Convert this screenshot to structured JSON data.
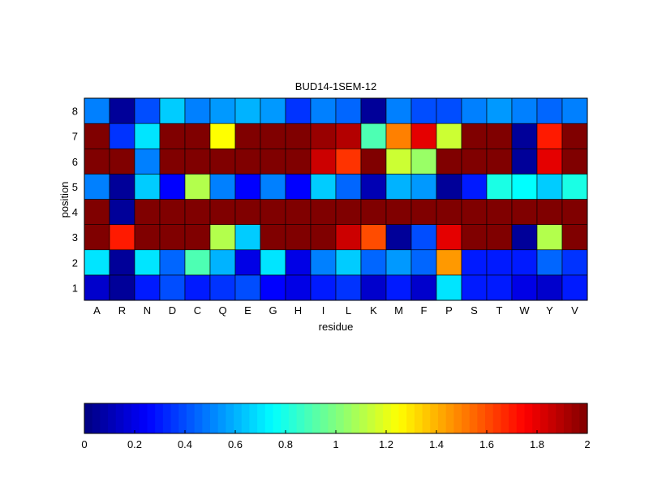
{
  "chart_data": {
    "type": "heatmap",
    "title": "BUD14-1SEM-12",
    "xlabel": "residue",
    "ylabel": "position",
    "x_categories": [
      "A",
      "R",
      "N",
      "D",
      "C",
      "Q",
      "E",
      "G",
      "H",
      "I",
      "L",
      "K",
      "M",
      "F",
      "P",
      "S",
      "T",
      "W",
      "Y",
      "V"
    ],
    "y_categories": [
      "1",
      "2",
      "3",
      "4",
      "5",
      "6",
      "7",
      "8"
    ],
    "values": [
      [
        0.15,
        0.05,
        0.3,
        0.4,
        0.3,
        0.35,
        0.4,
        0.25,
        0.2,
        0.3,
        0.35,
        0.15,
        0.3,
        0.15,
        0.7,
        0.3,
        0.3,
        0.2,
        0.15,
        0.3
      ],
      [
        0.7,
        0.05,
        0.7,
        0.45,
        0.9,
        0.6,
        0.2,
        0.7,
        0.2,
        0.5,
        0.65,
        0.45,
        0.55,
        0.45,
        1.45,
        0.3,
        0.3,
        0.3,
        0.45,
        0.35
      ],
      [
        2.0,
        1.7,
        2.0,
        2.0,
        2.0,
        1.1,
        0.65,
        2.0,
        2.0,
        2.0,
        1.85,
        1.6,
        0.05,
        0.4,
        1.8,
        2.0,
        2.0,
        0.05,
        1.1,
        2.0
      ],
      [
        2.0,
        0.05,
        2.0,
        2.0,
        2.0,
        2.0,
        2.0,
        2.0,
        2.0,
        2.0,
        2.0,
        2.0,
        2.0,
        2.0,
        2.0,
        2.0,
        2.0,
        2.0,
        2.0,
        2.0
      ],
      [
        0.5,
        0.05,
        0.65,
        0.25,
        1.1,
        0.5,
        0.25,
        0.5,
        0.25,
        0.65,
        0.45,
        0.1,
        0.6,
        0.55,
        0.05,
        0.3,
        0.8,
        0.75,
        0.65,
        0.8
      ],
      [
        2.0,
        2.0,
        0.5,
        2.0,
        2.0,
        2.0,
        2.0,
        2.0,
        2.0,
        1.85,
        1.65,
        2.0,
        1.15,
        1.05,
        2.0,
        2.0,
        2.0,
        0.05,
        1.8,
        2.0
      ],
      [
        2.0,
        0.35,
        0.7,
        2.0,
        2.0,
        1.25,
        2.0,
        2.0,
        2.0,
        1.95,
        1.9,
        0.9,
        1.5,
        1.8,
        1.15,
        2.0,
        2.0,
        0.05,
        1.7,
        2.0
      ],
      [
        0.5,
        0.05,
        0.4,
        0.65,
        0.5,
        0.55,
        0.6,
        0.55,
        0.35,
        0.5,
        0.45,
        0.05,
        0.5,
        0.4,
        0.4,
        0.5,
        0.55,
        0.5,
        0.45,
        0.5
      ]
    ],
    "colormap": "jet",
    "clim": [
      0,
      2
    ],
    "colorbar": {
      "placement": "bottom",
      "ticks": [
        "0",
        "0.2",
        "0.4",
        "0.6",
        "0.8",
        "1",
        "1.2",
        "1.4",
        "1.6",
        "1.8",
        "2"
      ]
    }
  }
}
